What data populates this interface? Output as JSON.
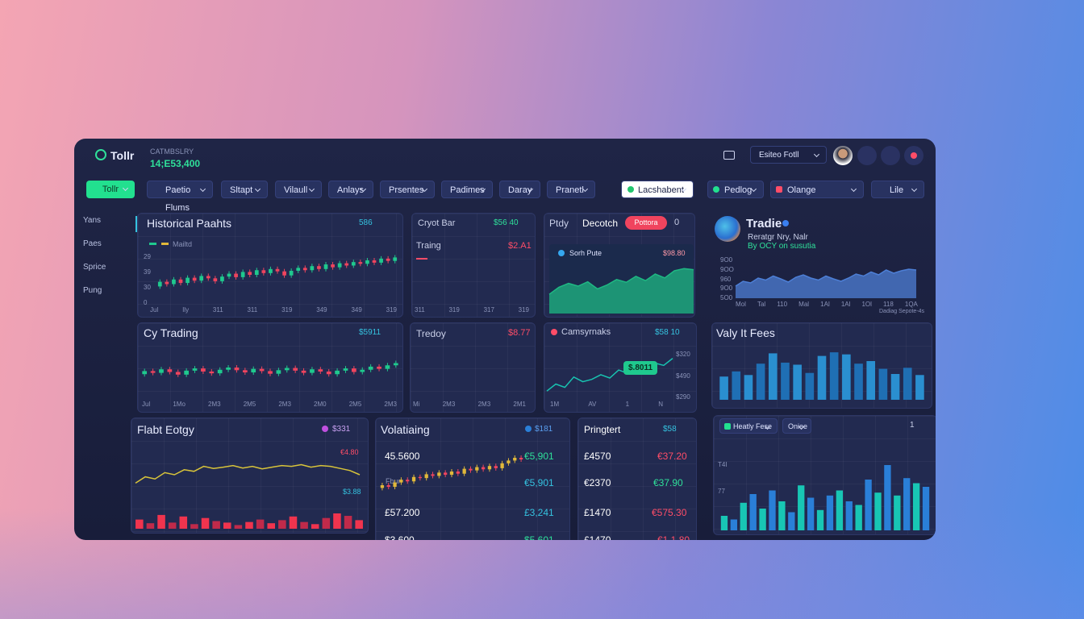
{
  "header": {
    "logo": "Tollr",
    "label": "CATMBSLRY",
    "balance": "14;E53,400",
    "search": "Esiteo Fotll"
  },
  "toolbar": {
    "primary": "Tollr",
    "filters": [
      "Paetio Flums",
      "Sltapt",
      "Vilaull",
      "Anlays",
      "Prsentes",
      "Padimes",
      "Daray",
      "Pranetl"
    ],
    "highlight": "Lacshabent",
    "right": [
      "Pedlog",
      "Olange",
      "Lile"
    ]
  },
  "sidebar": [
    "Yans",
    "Paes",
    "Sprice",
    "Pung"
  ],
  "panels": [
    {
      "title": "Historical Paahts",
      "badge": "586",
      "legend": "Mailtd",
      "ylabels": [
        "29",
        "39",
        "30",
        "0"
      ],
      "xlabels": [
        "Jul",
        "Ily",
        "311",
        "311",
        "319",
        "349",
        "349",
        "319"
      ],
      "charts": [
        {
          "type": "candlestick",
          "ylim": [
            0,
            100
          ],
          "up_color": "#1fc98e",
          "down_color": "#f0445e",
          "values": [
            30,
            38,
            34,
            42,
            36,
            45,
            40,
            48,
            44,
            39,
            47,
            52,
            46,
            55,
            50,
            58,
            53,
            60,
            56,
            49,
            57,
            62,
            58,
            65,
            60,
            68,
            63,
            70,
            66,
            72,
            69,
            75,
            71,
            78,
            74,
            80
          ]
        }
      ]
    },
    {
      "title": "Cryot Bar",
      "badge": "$56 40",
      "subtitle": "Traing",
      "value": "$2.A1",
      "xlabels": [
        "311",
        "319",
        "317",
        "319"
      ]
    },
    {
      "tabs": [
        "Ptdy",
        "Decotch"
      ],
      "pill": "Pottora",
      "count": "0",
      "card_title": "Sorh Pute",
      "card_value": "$98.80",
      "charts": [
        {
          "type": "line",
          "fill": true,
          "color": "#1fb883",
          "ylim": [
            0,
            100
          ],
          "values": [
            35,
            48,
            55,
            50,
            58,
            45,
            52,
            62,
            57,
            68,
            60,
            72,
            65,
            78,
            82,
            80
          ]
        }
      ]
    },
    {
      "title": "Tradie",
      "subtitle": "Reratgr Nry, Nalr",
      "note": "By OCY on susutia",
      "ylabels": [
        "9O0",
        "9OO",
        "960",
        "9O0",
        "5O0"
      ],
      "xlabels": [
        "Mol",
        "Tal",
        "110",
        "Mal",
        "1Al",
        "1Al",
        "1Ol",
        "118",
        "1QA"
      ],
      "footnote": "Dadiag Sepote-4s",
      "charts": [
        {
          "type": "line",
          "fill": true,
          "color": "#4d7fd6",
          "ylim": [
            0,
            100
          ],
          "values": [
            30,
            42,
            38,
            50,
            45,
            55,
            48,
            40,
            52,
            58,
            50,
            45,
            55,
            48,
            42,
            50,
            60,
            55,
            65,
            58,
            70,
            62,
            68,
            72,
            70
          ]
        }
      ]
    },
    {
      "title": "Cy Trading",
      "badge": "$5911",
      "xlabels": [
        "Jul",
        "1Mo",
        "2M3",
        "2M5",
        "2M3",
        "2M0",
        "2M5",
        "2M3"
      ],
      "charts": [
        {
          "type": "candlestick",
          "ylim": [
            0,
            100
          ],
          "up_color": "#1fc98e",
          "down_color": "#f0445e",
          "values": [
            45,
            52,
            48,
            56,
            50,
            44,
            53,
            58,
            51,
            47,
            55,
            60,
            54,
            49,
            57,
            52,
            46,
            54,
            59,
            53,
            48,
            56,
            51,
            45,
            53,
            58,
            50,
            55,
            62,
            57,
            65,
            70
          ]
        }
      ]
    },
    {
      "title": "Tredoy",
      "value": "$8.77",
      "xlabels": [
        "Mi",
        "2M3",
        "2M3",
        "2M1"
      ]
    },
    {
      "title": "Camsyrnaks",
      "badge": "$58 10",
      "ylabels": [
        "$320",
        "$490",
        "$290"
      ],
      "bubble": "$.8011",
      "xlabels": [
        "1M",
        "AV",
        "1",
        "N"
      ],
      "charts": [
        {
          "type": "line",
          "fill": false,
          "color": "#18c3b0",
          "ylim": [
            0,
            100
          ],
          "values": [
            10,
            25,
            18,
            40,
            30,
            35,
            45,
            38,
            55,
            48,
            62,
            55,
            70,
            65,
            80
          ]
        }
      ]
    },
    {
      "title": "Valy It Fees",
      "charts": [
        {
          "type": "bar",
          "ylim": [
            0,
            100
          ],
          "colors": [
            "#2a8fd0",
            "#1f6fb4"
          ],
          "values": [
            45,
            55,
            48,
            70,
            90,
            72,
            68,
            52,
            85,
            92,
            88,
            70,
            75,
            60,
            50,
            62,
            48
          ]
        }
      ]
    },
    {
      "title": "Flabt Eotgy",
      "badge": "$331",
      "high": "€4.80",
      "low": "$3.88",
      "charts": [
        {
          "type": "line",
          "fill": false,
          "color": "#d8c43a",
          "ylim": [
            0,
            100
          ],
          "values": [
            30,
            45,
            40,
            55,
            50,
            62,
            58,
            70,
            65,
            68,
            72,
            66,
            70,
            64,
            68,
            72,
            70,
            74,
            68,
            72,
            70,
            65,
            60,
            50
          ]
        },
        {
          "type": "bar",
          "ylim": [
            0,
            100
          ],
          "colors": [
            "#f0344e",
            "#c02a4a"
          ],
          "values": [
            30,
            18,
            45,
            20,
            40,
            15,
            35,
            25,
            20,
            12,
            22,
            30,
            18,
            28,
            40,
            22,
            15,
            35,
            50,
            42,
            28
          ]
        }
      ]
    },
    {
      "title": "Volatiaing",
      "badge": "$181",
      "left": [
        "45.5600",
        "Fbur",
        "£57.200",
        "$3.600"
      ],
      "right": [
        "€5,901",
        "€5,901",
        "£3,241",
        "$5,601"
      ],
      "charts": [
        {
          "type": "candlestick",
          "ylim": [
            0,
            100
          ],
          "up_color": "#e0b83a",
          "down_color": "#f0445e",
          "values": [
            20,
            25,
            22,
            30,
            35,
            32,
            40,
            38,
            45,
            42,
            48,
            44,
            50,
            46,
            55,
            52,
            58,
            54,
            60,
            56,
            65,
            70,
            75,
            72
          ]
        }
      ]
    },
    {
      "title": "Pringtert",
      "badge": "$58",
      "rows": [
        [
          "£4570",
          "€37.20"
        ],
        [
          "€2370",
          "€37.90"
        ],
        [
          "£1470",
          "€575.30"
        ],
        [
          "£1470",
          "€1.1.80"
        ]
      ]
    },
    {
      "tabs": [
        "Heatly Fese",
        "Oniee"
      ],
      "count": "1",
      "ylabels": [
        "T4I",
        "77"
      ],
      "charts": [
        {
          "type": "bar",
          "ylim": [
            0,
            100
          ],
          "colors": [
            "#18c6b4",
            "#2a7fd8"
          ],
          "values": [
            20,
            15,
            38,
            50,
            30,
            55,
            40,
            25,
            62,
            45,
            28,
            48,
            55,
            40,
            35,
            70,
            52,
            90,
            48,
            72,
            65,
            60
          ]
        }
      ]
    }
  ]
}
